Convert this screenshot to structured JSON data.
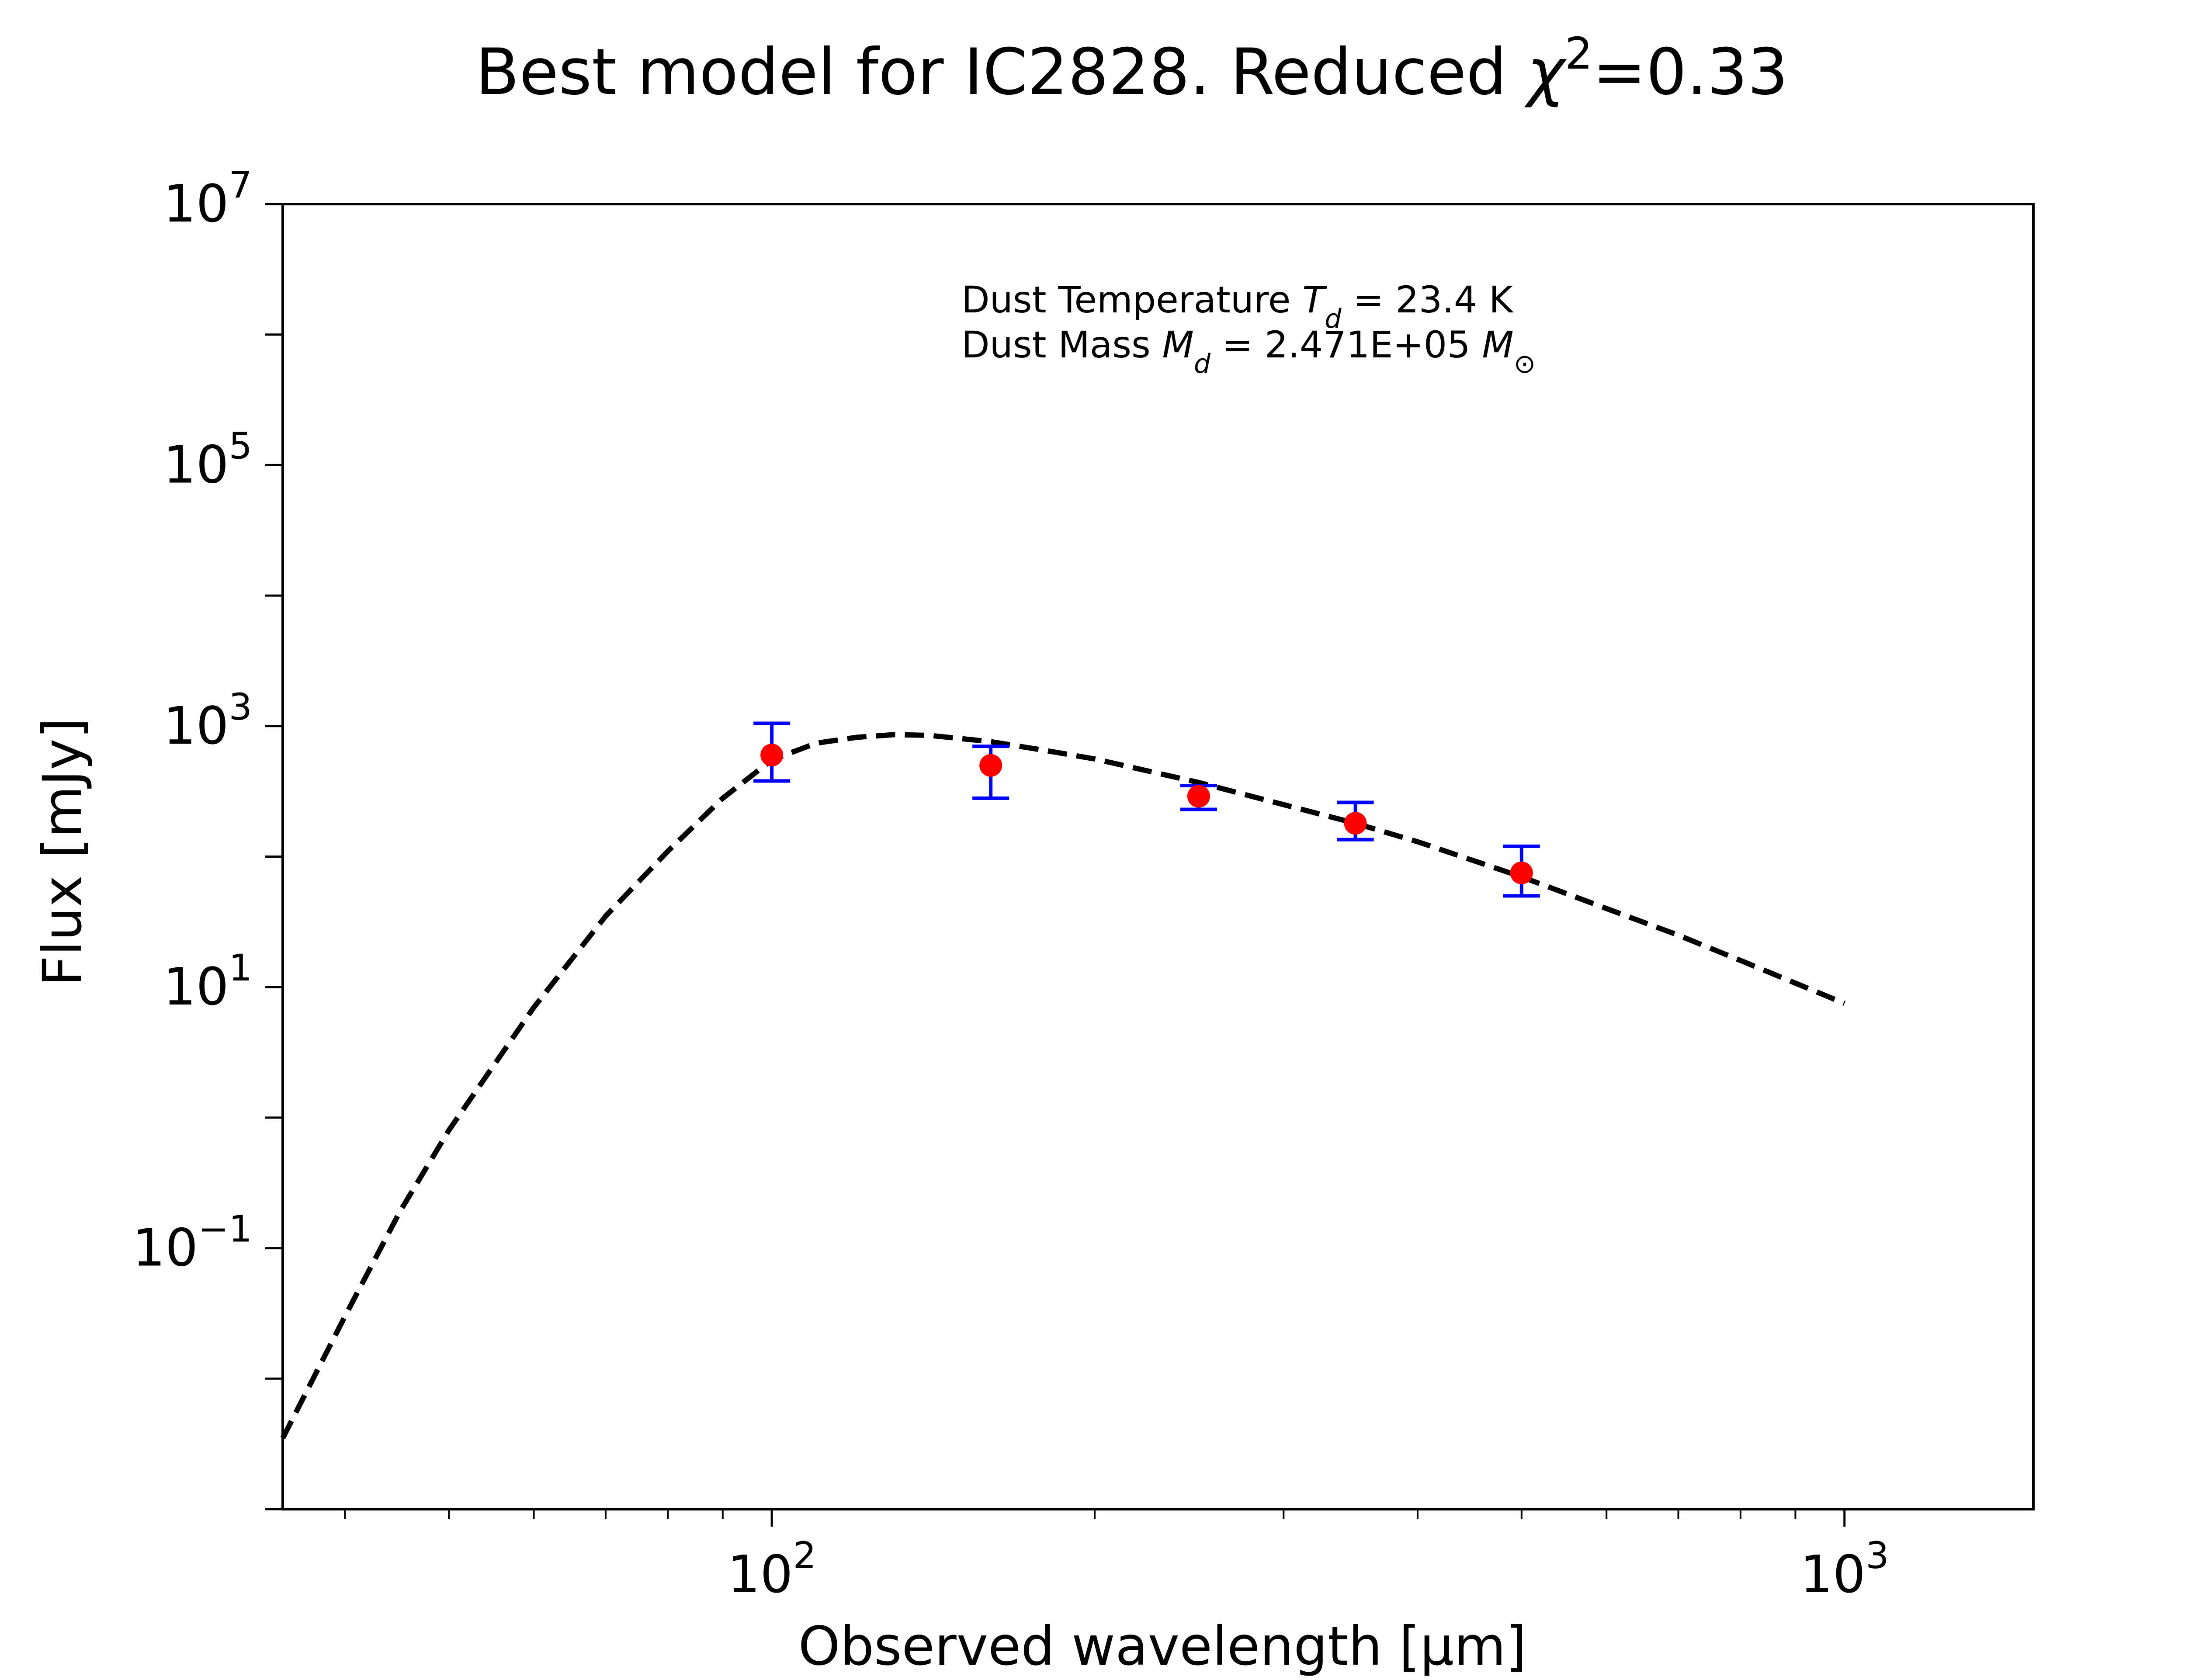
{
  "chart_data": {
    "type": "scatter",
    "title": {
      "prefix": "Best model for IC2828. Reduced ",
      "symbol": "χ",
      "superscript": "2",
      "suffix": "=0.33"
    },
    "xlabel": "Observed wavelength [μm]",
    "ylabel": "Flux [mJy]",
    "xscale": "log",
    "yscale": "log",
    "xlim": [
      35,
      1500
    ],
    "ylim": [
      0.001,
      10000000
    ],
    "grid": false,
    "x_ticks": [
      {
        "value": 100,
        "base": "10",
        "exp": "2"
      },
      {
        "value": 1000,
        "base": "10",
        "exp": "3"
      }
    ],
    "y_ticks": [
      {
        "value": 0.1,
        "base": "10",
        "exp": "−1"
      },
      {
        "value": 10,
        "base": "10",
        "exp": "1"
      },
      {
        "value": 1000,
        "base": "10",
        "exp": "3"
      },
      {
        "value": 100000,
        "base": "10",
        "exp": "5"
      },
      {
        "value": 10000000,
        "base": "10",
        "exp": "7"
      }
    ],
    "annotations": {
      "line1": {
        "prefix": "Dust Temperature ",
        "symbol": "T",
        "sub": "d",
        "suffix": " = 23.4 K"
      },
      "line2": {
        "prefix": "Dust Mass ",
        "symbol": "M",
        "sub": "d",
        "middle": " = 2.471E+05 ",
        "unit_symbol": "M",
        "unit_sub": "⊙"
      }
    },
    "series": [
      {
        "style": "dashed-line",
        "color": "#000000",
        "x": [
          35,
          40,
          45,
          50,
          60,
          70,
          80,
          90,
          100,
          110,
          120,
          130,
          140,
          160,
          180,
          200,
          250,
          300,
          350,
          400,
          500,
          600,
          700,
          800,
          1000
        ],
        "y": [
          0.0035,
          0.03,
          0.19,
          0.8,
          7,
          35,
          110,
          280,
          550,
          740,
          820,
          860,
          850,
          760,
          650,
          560,
          370,
          250,
          180,
          130,
          70,
          40,
          25,
          16,
          7.5
        ]
      },
      {
        "style": "points-with-errorbars",
        "marker_color": "#ff0000",
        "errorbar_color": "#0000ff",
        "x": [
          100,
          160,
          250,
          350,
          500
        ],
        "y": [
          600,
          500,
          290,
          180,
          75
        ],
        "yerr_low": [
          380,
          280,
          230,
          135,
          50
        ],
        "yerr_high": [
          1050,
          700,
          350,
          260,
          120
        ]
      }
    ]
  }
}
